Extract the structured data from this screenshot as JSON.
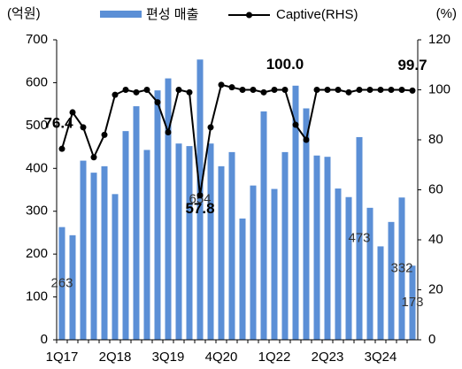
{
  "chart_data": {
    "type": "bar_line",
    "y_axis_label": "(억원)",
    "y2_axis_label": "(%)",
    "categories": [
      "1Q17",
      null,
      null,
      null,
      null,
      "2Q18",
      null,
      null,
      null,
      null,
      "3Q19",
      null,
      null,
      null,
      null,
      "4Q20",
      null,
      null,
      null,
      null,
      "1Q22",
      null,
      null,
      null,
      null,
      "2Q23",
      null,
      null,
      null,
      null,
      "3Q24",
      null,
      null,
      null
    ],
    "series": [
      {
        "name": "편성 매출",
        "type": "bar",
        "color": "#5b8fd6",
        "values": [
          263,
          244,
          418,
          390,
          405,
          340,
          487,
          545,
          443,
          582,
          610,
          458,
          452,
          654,
          458,
          405,
          438,
          283,
          360,
          533,
          352,
          438,
          593,
          540,
          430,
          427,
          353,
          333,
          473,
          308,
          218,
          275,
          332,
          173
        ],
        "value_labels": [
          "263",
          null,
          null,
          null,
          null,
          null,
          null,
          null,
          null,
          null,
          null,
          null,
          null,
          "654",
          null,
          null,
          null,
          null,
          null,
          null,
          null,
          null,
          null,
          null,
          null,
          null,
          null,
          null,
          "473",
          null,
          null,
          null,
          "332",
          "173"
        ]
      },
      {
        "name": "Captive(RHS)",
        "type": "line",
        "color": "#000000",
        "axis": "y2",
        "values": [
          76.4,
          91,
          85,
          73,
          82,
          98,
          100,
          99,
          100,
          95,
          83,
          100,
          99,
          57.8,
          85,
          102,
          101,
          100,
          100,
          99,
          100,
          100.0,
          86,
          80,
          100,
          100,
          100,
          99,
          100,
          100,
          100,
          100,
          100,
          99.7
        ],
        "value_labels": [
          "76.4",
          null,
          null,
          null,
          null,
          null,
          null,
          null,
          null,
          null,
          null,
          null,
          null,
          "57.8",
          null,
          null,
          null,
          null,
          null,
          null,
          null,
          "100.0",
          null,
          null,
          null,
          null,
          null,
          null,
          null,
          null,
          null,
          null,
          null,
          "99.7"
        ]
      }
    ],
    "ylim": [
      0,
      700
    ],
    "yticks": [
      0,
      100,
      200,
      300,
      400,
      500,
      600,
      700
    ],
    "y2lim": [
      0,
      120
    ],
    "y2ticks": [
      0,
      20,
      40,
      60,
      80,
      100,
      120
    ],
    "legend": "top",
    "grid": false
  }
}
